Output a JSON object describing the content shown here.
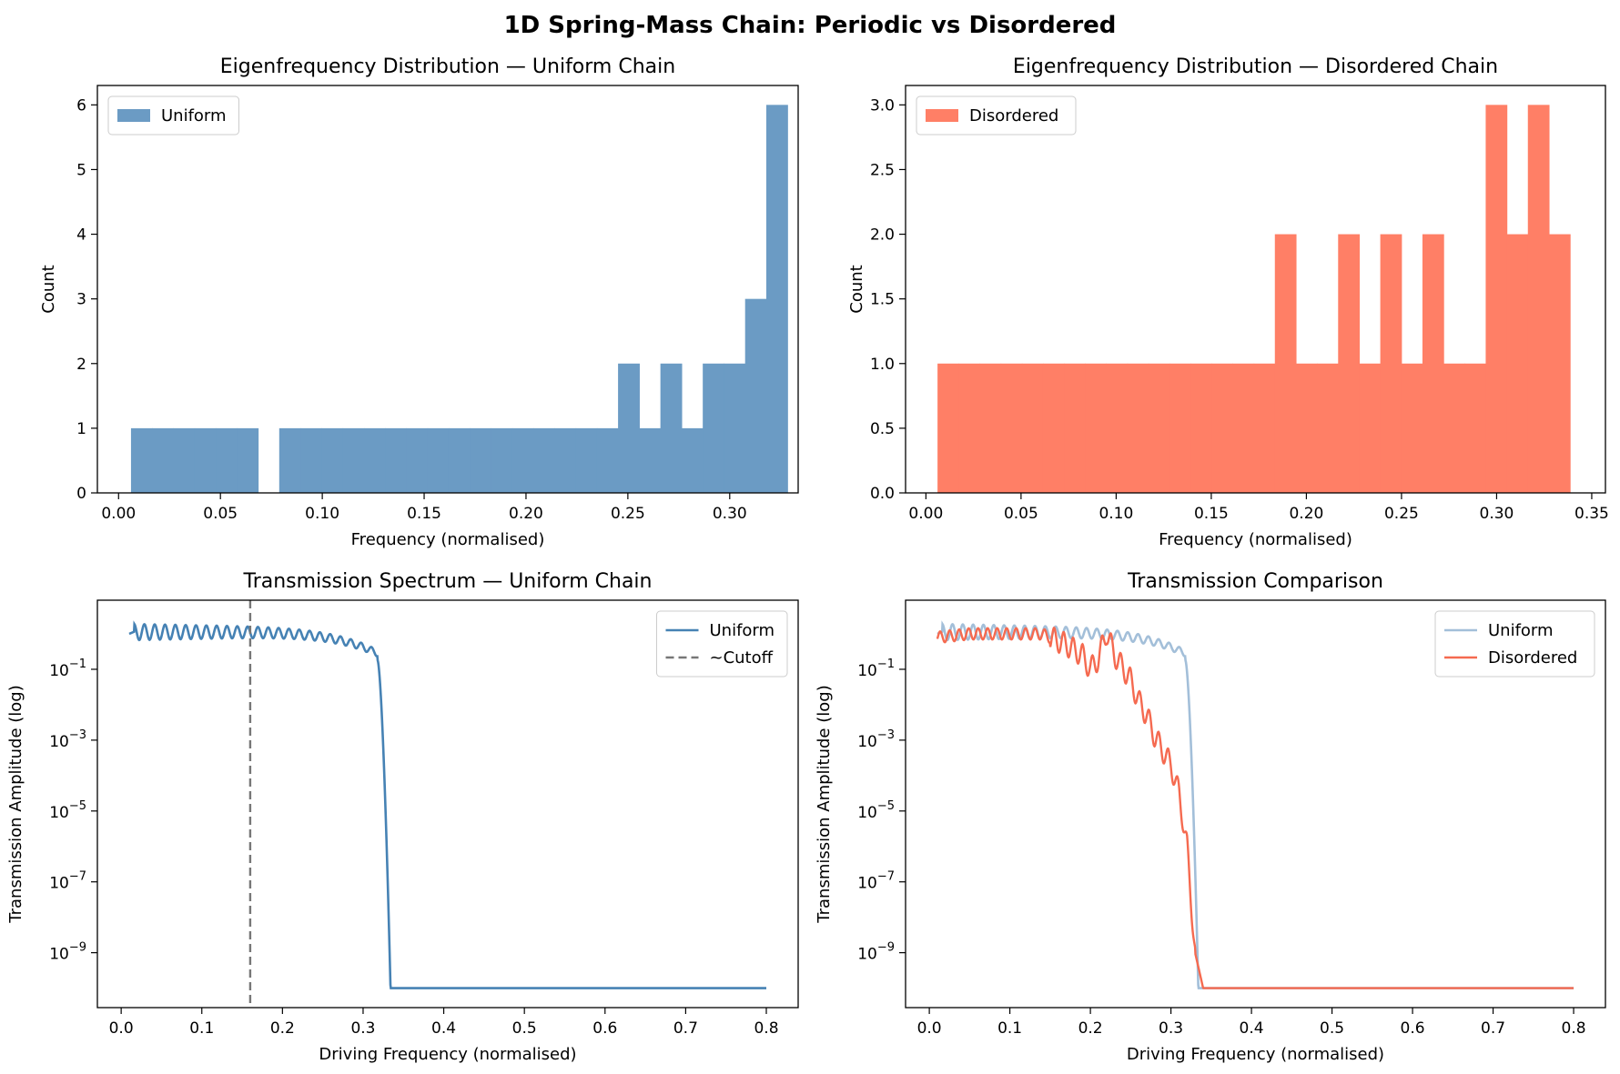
{
  "figure": {
    "suptitle": "1D Spring-Mass Chain: Periodic vs Disordered"
  },
  "colors": {
    "uniform": "#4682B4",
    "uniform_hist": "#6B9BC4",
    "disordered": "#FF7F66",
    "disordered_line": "#F56A50",
    "uniform_faded": "#A3BFD9",
    "cutoff": "#777777"
  },
  "chart_data": [
    {
      "type": "bar",
      "title": "Eigenfrequency Distribution — Uniform Chain",
      "xlabel": "Frequency (normalised)",
      "ylabel": "Count",
      "xlim": [
        -0.0104,
        0.3336
      ],
      "ylim": [
        0,
        6.3
      ],
      "xticks": [
        0.0,
        0.05,
        0.1,
        0.15,
        0.2,
        0.25,
        0.3
      ],
      "xtick_labels": [
        "0.00",
        "0.05",
        "0.10",
        "0.15",
        "0.20",
        "0.25",
        "0.30"
      ],
      "yticks": [
        0,
        1,
        2,
        3,
        4,
        5,
        6
      ],
      "ytick_labels": [
        "0",
        "1",
        "2",
        "3",
        "4",
        "5",
        "6"
      ],
      "legend": {
        "position": "upper-left",
        "entries": [
          "Uniform"
        ]
      },
      "bins": {
        "start": 0.0061,
        "width": 0.010395
      },
      "counts": [
        1,
        1,
        1,
        1,
        1,
        1,
        0,
        1,
        1,
        1,
        1,
        1,
        1,
        1,
        1,
        1,
        1,
        1,
        1,
        1,
        1,
        1,
        1,
        2,
        1,
        2,
        1,
        2,
        2,
        3,
        6
      ],
      "series": [
        {
          "name": "Uniform"
        }
      ]
    },
    {
      "type": "bar",
      "title": "Eigenfrequency Distribution — Disordered Chain",
      "xlabel": "Frequency (normalised)",
      "ylabel": "Count",
      "xlim": [
        -0.0107,
        0.3572
      ],
      "ylim": [
        0,
        3.15
      ],
      "xticks": [
        0.0,
        0.05,
        0.1,
        0.15,
        0.2,
        0.25,
        0.3,
        0.35
      ],
      "xtick_labels": [
        "0.00",
        "0.05",
        "0.10",
        "0.15",
        "0.20",
        "0.25",
        "0.30",
        "0.35"
      ],
      "yticks": [
        0.0,
        0.5,
        1.0,
        1.5,
        2.0,
        2.5,
        3.0
      ],
      "ytick_labels": [
        "0.0",
        "0.5",
        "1.0",
        "1.5",
        "2.0",
        "2.5",
        "3.0"
      ],
      "legend": {
        "position": "upper-left",
        "entries": [
          "Disordered"
        ]
      },
      "bins": {
        "start": 0.0061,
        "width": 0.011083
      },
      "counts": [
        1,
        1,
        1,
        1,
        1,
        1,
        1,
        1,
        1,
        1,
        1,
        1,
        1,
        1,
        1,
        1,
        2,
        1,
        1,
        2,
        1,
        2,
        1,
        2,
        1,
        1,
        3,
        2,
        3,
        2
      ],
      "series": [
        {
          "name": "Disordered"
        }
      ]
    },
    {
      "type": "line",
      "title": "Transmission Spectrum — Uniform Chain",
      "xlabel": "Driving Frequency (normalised)",
      "ylabel": "Transmission Amplitude (log)",
      "xlim": [
        -0.0295,
        0.8395
      ],
      "yscale": "log",
      "ylim_log10": [
        -10.55,
        0.95
      ],
      "xticks": [
        0.0,
        0.1,
        0.2,
        0.3,
        0.4,
        0.5,
        0.6,
        0.7,
        0.8
      ],
      "xtick_labels": [
        "0.0",
        "0.1",
        "0.2",
        "0.3",
        "0.4",
        "0.5",
        "0.6",
        "0.7",
        "0.8"
      ],
      "yticks_log10": [
        -1,
        -3,
        -5,
        -7,
        -9
      ],
      "ytick_labels": [
        {
          "base": "10",
          "exp": "−1"
        },
        {
          "base": "10",
          "exp": "−3"
        },
        {
          "base": "10",
          "exp": "−5"
        },
        {
          "base": "10",
          "exp": "−7"
        },
        {
          "base": "10",
          "exp": "−9"
        }
      ],
      "legend": {
        "position": "upper-right",
        "entries": [
          "Uniform",
          "~Cutoff"
        ]
      },
      "cutoff_x": 0.16,
      "series": [
        {
          "name": "Uniform",
          "x_range": [
            0.01,
            0.8
          ],
          "cutoff": 0.318,
          "floor_log10": -10
        }
      ]
    },
    {
      "type": "line",
      "title": "Transmission Comparison",
      "xlabel": "Driving Frequency (normalised)",
      "ylabel": "Transmission Amplitude (log)",
      "xlim": [
        -0.0295,
        0.8395
      ],
      "yscale": "log",
      "ylim_log10": [
        -10.55,
        0.95
      ],
      "xticks": [
        0.0,
        0.1,
        0.2,
        0.3,
        0.4,
        0.5,
        0.6,
        0.7,
        0.8
      ],
      "xtick_labels": [
        "0.0",
        "0.1",
        "0.2",
        "0.3",
        "0.4",
        "0.5",
        "0.6",
        "0.7",
        "0.8"
      ],
      "yticks_log10": [
        -1,
        -3,
        -5,
        -7,
        -9
      ],
      "ytick_labels": [
        {
          "base": "10",
          "exp": "−1"
        },
        {
          "base": "10",
          "exp": "−3"
        },
        {
          "base": "10",
          "exp": "−5"
        },
        {
          "base": "10",
          "exp": "−7"
        },
        {
          "base": "10",
          "exp": "−9"
        }
      ],
      "legend": {
        "position": "upper-right",
        "entries": [
          "Uniform",
          "Disordered"
        ]
      },
      "series": [
        {
          "name": "Uniform",
          "x_range": [
            0.01,
            0.8
          ],
          "cutoff": 0.318,
          "floor_log10": -10
        },
        {
          "name": "Disordered",
          "x_range": [
            0.01,
            0.8
          ],
          "floor_log10": -10,
          "x": [
            0.01,
            0.05,
            0.1,
            0.14,
            0.17,
            0.19,
            0.2,
            0.21,
            0.22,
            0.23,
            0.25,
            0.26,
            0.27,
            0.28,
            0.29,
            0.3,
            0.31,
            0.32,
            0.33,
            0.34,
            0.8
          ],
          "log10_y": [
            -0.1,
            0.0,
            0.0,
            0.0,
            -0.3,
            -0.6,
            -1.0,
            -0.7,
            0.05,
            -0.6,
            -1.3,
            -1.9,
            -2.3,
            -2.9,
            -3.3,
            -3.7,
            -4.5,
            -6.0,
            -9.0,
            -10.0,
            -10.0
          ]
        }
      ]
    }
  ]
}
